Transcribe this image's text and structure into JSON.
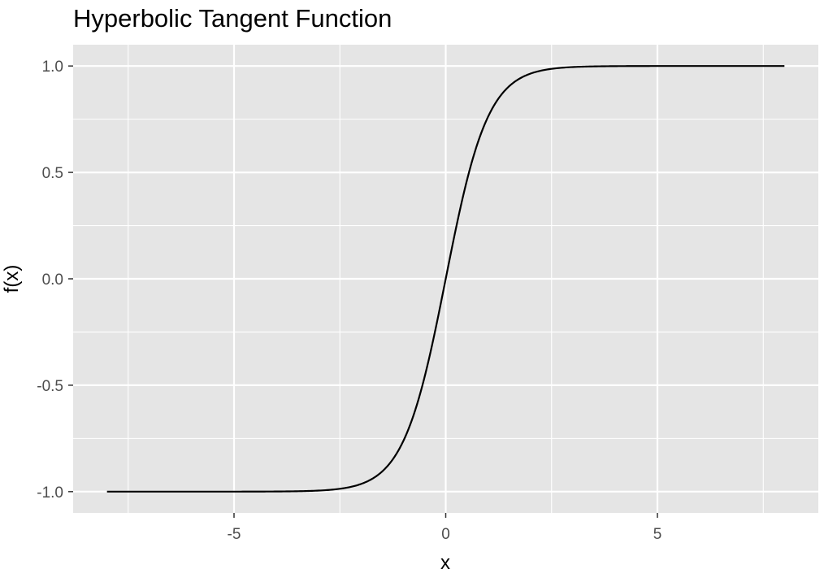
{
  "chart_data": {
    "type": "line",
    "title": "Hyperbolic Tangent Function",
    "xlabel": "x",
    "ylabel": "f(x)",
    "xlim": [
      -8.8,
      8.8
    ],
    "ylim": [
      -1.1,
      1.1
    ],
    "x_ticks": [
      -5,
      0,
      5
    ],
    "x_tick_labels": [
      "-5",
      "0",
      "5"
    ],
    "y_ticks": [
      -1.0,
      -0.5,
      0.0,
      0.5,
      1.0
    ],
    "y_tick_labels": [
      "-1.0",
      "-0.5",
      "0.0",
      "0.5",
      "1.0"
    ],
    "x_minor_ticks": [
      -7.5,
      -2.5,
      2.5,
      7.5
    ],
    "y_minor_ticks": [
      -0.75,
      -0.25,
      0.25,
      0.75
    ],
    "grid": true,
    "legend": "none",
    "series": [
      {
        "function": "tanh",
        "x": [
          -8,
          -7,
          -6,
          -5,
          -4,
          -3,
          -2.5,
          -2,
          -1.5,
          -1.25,
          -1,
          -0.75,
          -0.5,
          -0.25,
          0,
          0.25,
          0.5,
          0.75,
          1,
          1.25,
          1.5,
          2,
          2.5,
          3,
          4,
          5,
          6,
          7,
          8
        ],
        "y": [
          -1.0,
          -1.0,
          -1.0,
          -0.9999,
          -0.9993,
          -0.9951,
          -0.9866,
          -0.964,
          -0.9051,
          -0.8483,
          -0.7616,
          -0.6351,
          -0.4621,
          -0.2449,
          0.0,
          0.2449,
          0.4621,
          0.6351,
          0.7616,
          0.8483,
          0.9051,
          0.964,
          0.9866,
          0.9951,
          0.9993,
          0.9999,
          1.0,
          1.0,
          1.0
        ]
      }
    ],
    "colors": {
      "panel_background": "#e5e5e5",
      "grid": "#ffffff",
      "line": "#000000",
      "tick_text": "#4d4d4d",
      "title_text": "#000000",
      "tick_mark": "#333333"
    }
  }
}
